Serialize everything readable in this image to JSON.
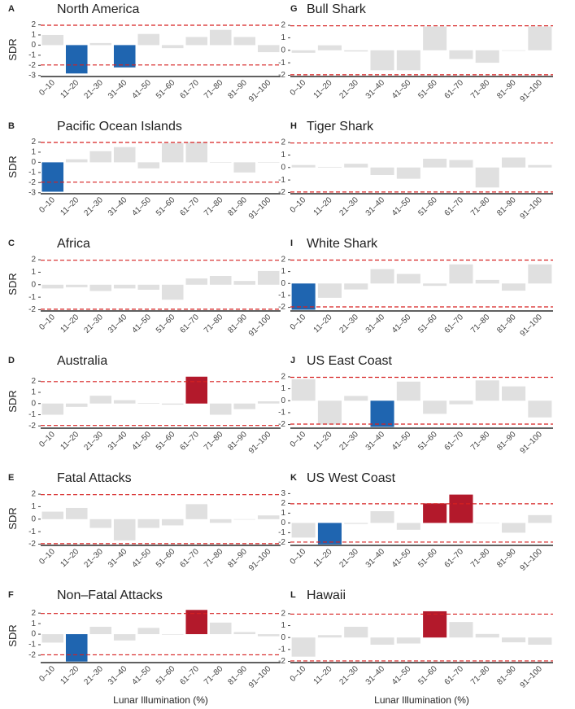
{
  "chart_data": [
    {
      "type": "bar",
      "panel": "A",
      "title": "North America",
      "ylabel": "SDR",
      "categories": [
        "0–10",
        "11–20",
        "21–30",
        "31–40",
        "41–50",
        "51–60",
        "61–70",
        "71–80",
        "81–90",
        "91–100"
      ],
      "values": [
        1.0,
        -2.8,
        0.2,
        -2.2,
        1.1,
        -0.3,
        0.8,
        1.5,
        0.8,
        -0.7
      ],
      "colors": [
        "#e0e0e0",
        "#1f65b0",
        "#e0e0e0",
        "#1f65b0",
        "#e0e0e0",
        "#e0e0e0",
        "#e0e0e0",
        "#e0e0e0",
        "#e0e0e0",
        "#e0e0e0"
      ],
      "ylim": [
        -3.1,
        2.2
      ],
      "yticks": [
        -3,
        -2,
        -1,
        0,
        1,
        2
      ],
      "thresholds": [
        -1.96,
        1.96
      ]
    },
    {
      "type": "bar",
      "panel": "B",
      "title": "Pacific Ocean Islands",
      "ylabel": "SDR",
      "categories": [
        "0–10",
        "11–20",
        "21–30",
        "31–40",
        "41–50",
        "51–60",
        "61–70",
        "71–80",
        "81–90",
        "91–100"
      ],
      "values": [
        -2.9,
        0.3,
        1.1,
        1.5,
        -0.6,
        1.9,
        2.0,
        0,
        -1.0,
        0
      ],
      "colors": [
        "#1f65b0",
        "#e0e0e0",
        "#e0e0e0",
        "#e0e0e0",
        "#e0e0e0",
        "#e0e0e0",
        "#e0e0e0",
        "#e0e0e0",
        "#e0e0e0",
        "#e0e0e0"
      ],
      "ylim": [
        -3.1,
        2.2
      ],
      "yticks": [
        -3,
        -2,
        -1,
        0,
        1,
        2
      ],
      "thresholds": [
        -1.96,
        1.96
      ]
    },
    {
      "type": "bar",
      "panel": "C",
      "title": "Africa",
      "ylabel": "SDR",
      "categories": [
        "0–10",
        "11–20",
        "21–30",
        "31–40",
        "41–50",
        "51–60",
        "61–70",
        "71–80",
        "81–90",
        "91–100"
      ],
      "values": [
        -0.3,
        -0.2,
        -0.5,
        -0.3,
        -0.4,
        -1.2,
        0.5,
        0.7,
        0.3,
        1.1
      ],
      "colors": [
        "#e0e0e0",
        "#e0e0e0",
        "#e0e0e0",
        "#e0e0e0",
        "#e0e0e0",
        "#e0e0e0",
        "#e0e0e0",
        "#e0e0e0",
        "#e0e0e0",
        "#e0e0e0"
      ],
      "ylim": [
        -2.1,
        2.2
      ],
      "yticks": [
        -2,
        -1,
        0,
        1,
        2
      ],
      "thresholds": [
        -1.96,
        1.96
      ]
    },
    {
      "type": "bar",
      "panel": "D",
      "title": "Australia",
      "ylabel": "SDR",
      "categories": [
        "0–10",
        "11–20",
        "21–30",
        "31–40",
        "41–50",
        "51–60",
        "61–70",
        "71–80",
        "81–90",
        "91–100"
      ],
      "values": [
        -1.0,
        -0.3,
        0.7,
        0.3,
        0.05,
        -0.1,
        2.4,
        -1.0,
        -0.5,
        0.2
      ],
      "colors": [
        "#e0e0e0",
        "#e0e0e0",
        "#e0e0e0",
        "#e0e0e0",
        "#e0e0e0",
        "#e0e0e0",
        "#b3192b",
        "#e0e0e0",
        "#e0e0e0",
        "#e0e0e0"
      ],
      "ylim": [
        -2.2,
        2.6
      ],
      "yticks": [
        -2,
        -1,
        0,
        1,
        2
      ],
      "thresholds": [
        -1.96,
        1.96
      ]
    },
    {
      "type": "bar",
      "panel": "E",
      "title": "Fatal Attacks",
      "ylabel": "SDR",
      "categories": [
        "0–10",
        "11–20",
        "21–30",
        "31–40",
        "41–50",
        "51–60",
        "61–70",
        "71–80",
        "81–90",
        "91–100"
      ],
      "values": [
        0.6,
        0.9,
        -0.7,
        -1.7,
        -0.7,
        -0.5,
        1.2,
        -0.3,
        0,
        0.3
      ],
      "colors": [
        "#e0e0e0",
        "#e0e0e0",
        "#e0e0e0",
        "#e0e0e0",
        "#e0e0e0",
        "#e0e0e0",
        "#e0e0e0",
        "#e0e0e0",
        "#e0e0e0",
        "#e0e0e0"
      ],
      "ylim": [
        -2.1,
        2.2
      ],
      "yticks": [
        -2,
        -1,
        0,
        1,
        2
      ],
      "thresholds": [
        -1.96,
        1.96
      ]
    },
    {
      "type": "bar",
      "panel": "F",
      "title": "Non–Fatal Attacks",
      "ylabel": "SDR",
      "xlabel": "Lunar Illumination (%)",
      "categories": [
        "0–10",
        "11–20",
        "21–30",
        "31–40",
        "41–50",
        "51–60",
        "61–70",
        "71–80",
        "81–90",
        "91–100"
      ],
      "values": [
        -0.8,
        -2.6,
        0.7,
        -0.6,
        0.6,
        0,
        2.3,
        1.1,
        0.2,
        -0.2
      ],
      "colors": [
        "#e0e0e0",
        "#1f65b0",
        "#e0e0e0",
        "#e0e0e0",
        "#e0e0e0",
        "#e0e0e0",
        "#b3192b",
        "#e0e0e0",
        "#e0e0e0",
        "#e0e0e0"
      ],
      "ylim": [
        -2.7,
        2.4
      ],
      "yticks": [
        -2,
        -1,
        0,
        1,
        2
      ],
      "thresholds": [
        -1.96,
        1.96
      ]
    },
    {
      "type": "bar",
      "panel": "G",
      "title": "Bull Shark",
      "categories": [
        "0–10",
        "11–20",
        "21–30",
        "31–40",
        "41–50",
        "51–60",
        "61–70",
        "71–80",
        "81–90",
        "91–100"
      ],
      "values": [
        -0.2,
        0.4,
        -0.1,
        -1.6,
        -1.6,
        1.9,
        -0.7,
        -1.0,
        0,
        1.9
      ],
      "colors": [
        "#e0e0e0",
        "#e0e0e0",
        "#e0e0e0",
        "#e0e0e0",
        "#e0e0e0",
        "#e0e0e0",
        "#e0e0e0",
        "#e0e0e0",
        "#e0e0e0",
        "#e0e0e0"
      ],
      "ylim": [
        -2.1,
        2.2
      ],
      "yticks": [
        -2,
        -1,
        0,
        1,
        2
      ],
      "thresholds": [
        -1.96,
        1.96
      ]
    },
    {
      "type": "bar",
      "panel": "H",
      "title": "Tiger Shark",
      "categories": [
        "0–10",
        "11–20",
        "21–30",
        "31–40",
        "41–50",
        "51–60",
        "61–70",
        "71–80",
        "81–90",
        "91–100"
      ],
      "values": [
        0.2,
        0.05,
        0.3,
        -0.6,
        -0.9,
        0.7,
        0.6,
        -1.6,
        0.8,
        0.2
      ],
      "colors": [
        "#e0e0e0",
        "#e0e0e0",
        "#e0e0e0",
        "#e0e0e0",
        "#e0e0e0",
        "#e0e0e0",
        "#e0e0e0",
        "#e0e0e0",
        "#e0e0e0",
        "#e0e0e0"
      ],
      "ylim": [
        -2.1,
        2.2
      ],
      "yticks": [
        -2,
        -1,
        0,
        1,
        2
      ],
      "thresholds": [
        -1.96,
        1.96
      ]
    },
    {
      "type": "bar",
      "panel": "I",
      "title": "White Shark",
      "categories": [
        "0–10",
        "11–20",
        "21–30",
        "31–40",
        "41–50",
        "51–60",
        "61–70",
        "71–80",
        "81–90",
        "91–100"
      ],
      "values": [
        -2.2,
        -1.2,
        -0.5,
        1.2,
        0.8,
        -0.2,
        1.6,
        0.3,
        -0.6,
        1.6
      ],
      "colors": [
        "#1f65b0",
        "#e0e0e0",
        "#e0e0e0",
        "#e0e0e0",
        "#e0e0e0",
        "#e0e0e0",
        "#e0e0e0",
        "#e0e0e0",
        "#e0e0e0",
        "#e0e0e0"
      ],
      "ylim": [
        -2.3,
        2.2
      ],
      "yticks": [
        -2,
        -1,
        0,
        1,
        2
      ],
      "thresholds": [
        -1.96,
        1.96
      ]
    },
    {
      "type": "bar",
      "panel": "J",
      "title": "US East Coast",
      "categories": [
        "0–10",
        "11–20",
        "21–30",
        "31–40",
        "41–50",
        "51–60",
        "61–70",
        "71–80",
        "81–90",
        "91–100"
      ],
      "values": [
        1.8,
        -2.0,
        0.4,
        -2.2,
        1.6,
        -1.1,
        -0.3,
        1.7,
        1.2,
        -1.4
      ],
      "colors": [
        "#e0e0e0",
        "#e0e0e0",
        "#e0e0e0",
        "#1f65b0",
        "#e0e0e0",
        "#e0e0e0",
        "#e0e0e0",
        "#e0e0e0",
        "#e0e0e0",
        "#e0e0e0"
      ],
      "ylim": [
        -2.3,
        2.2
      ],
      "yticks": [
        -2,
        -1,
        0,
        1,
        2
      ],
      "thresholds": [
        -1.96,
        1.96
      ]
    },
    {
      "type": "bar",
      "panel": "K",
      "title": "US West Coast",
      "categories": [
        "0–10",
        "11–20",
        "21–30",
        "31–40",
        "41–50",
        "51–60",
        "61–70",
        "71–80",
        "81–90",
        "91–100"
      ],
      "values": [
        -1.5,
        -2.2,
        -0.1,
        1.2,
        -0.7,
        2.0,
        2.9,
        0,
        -1.0,
        0.8
      ],
      "colors": [
        "#e0e0e0",
        "#1f65b0",
        "#e0e0e0",
        "#e0e0e0",
        "#e0e0e0",
        "#b3192b",
        "#b3192b",
        "#e0e0e0",
        "#e0e0e0",
        "#e0e0e0"
      ],
      "ylim": [
        -2.3,
        3.2
      ],
      "yticks": [
        -2,
        -1,
        0,
        1,
        2,
        3
      ],
      "thresholds": [
        -1.96,
        1.96
      ]
    },
    {
      "type": "bar",
      "panel": "L",
      "title": "Hawaii",
      "xlabel": "Lunar Illumination (%)",
      "categories": [
        "0–10",
        "11–20",
        "21–30",
        "31–40",
        "41–50",
        "51–60",
        "61–70",
        "71–80",
        "81–90",
        "91–100"
      ],
      "values": [
        -1.6,
        0.2,
        0.9,
        -0.6,
        -0.5,
        2.2,
        1.3,
        0.3,
        -0.4,
        -0.6
      ],
      "colors": [
        "#e0e0e0",
        "#e0e0e0",
        "#e0e0e0",
        "#e0e0e0",
        "#e0e0e0",
        "#b3192b",
        "#e0e0e0",
        "#e0e0e0",
        "#e0e0e0",
        "#e0e0e0"
      ],
      "ylim": [
        -2.1,
        2.4
      ],
      "yticks": [
        -2,
        -1,
        0,
        1,
        2
      ],
      "thresholds": [
        -1.96,
        1.96
      ]
    }
  ]
}
